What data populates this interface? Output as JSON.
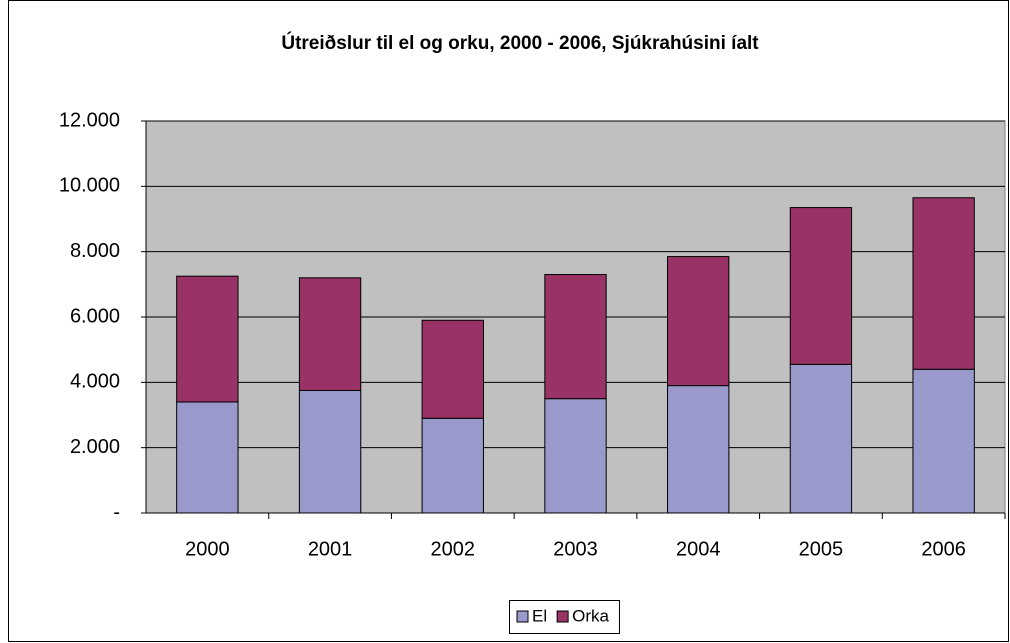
{
  "chart_data": {
    "type": "stacked_bar",
    "title": "Útreiðslur til el og orku, 2000 - 2006, Sjúkrahúsini íalt",
    "categories": [
      "2000",
      "2001",
      "2002",
      "2003",
      "2004",
      "2005",
      "2006"
    ],
    "series": [
      {
        "name": "El",
        "color": "#9999cc",
        "values": [
          3400,
          3750,
          2900,
          3500,
          3900,
          4550,
          4400
        ]
      },
      {
        "name": "Orka",
        "color": "#993366",
        "values": [
          3850,
          3450,
          3000,
          3800,
          3950,
          4800,
          5250
        ]
      }
    ],
    "ylim": [
      0,
      12000
    ],
    "yticks": [
      {
        "value": 0,
        "label": "-"
      },
      {
        "value": 2000,
        "label": "2.000"
      },
      {
        "value": 4000,
        "label": "4.000"
      },
      {
        "value": 6000,
        "label": "6.000"
      },
      {
        "value": 8000,
        "label": "8.000"
      },
      {
        "value": 10000,
        "label": "10.000"
      },
      {
        "value": 12000,
        "label": "12.000"
      }
    ],
    "grid": true,
    "legend": "bottom"
  }
}
